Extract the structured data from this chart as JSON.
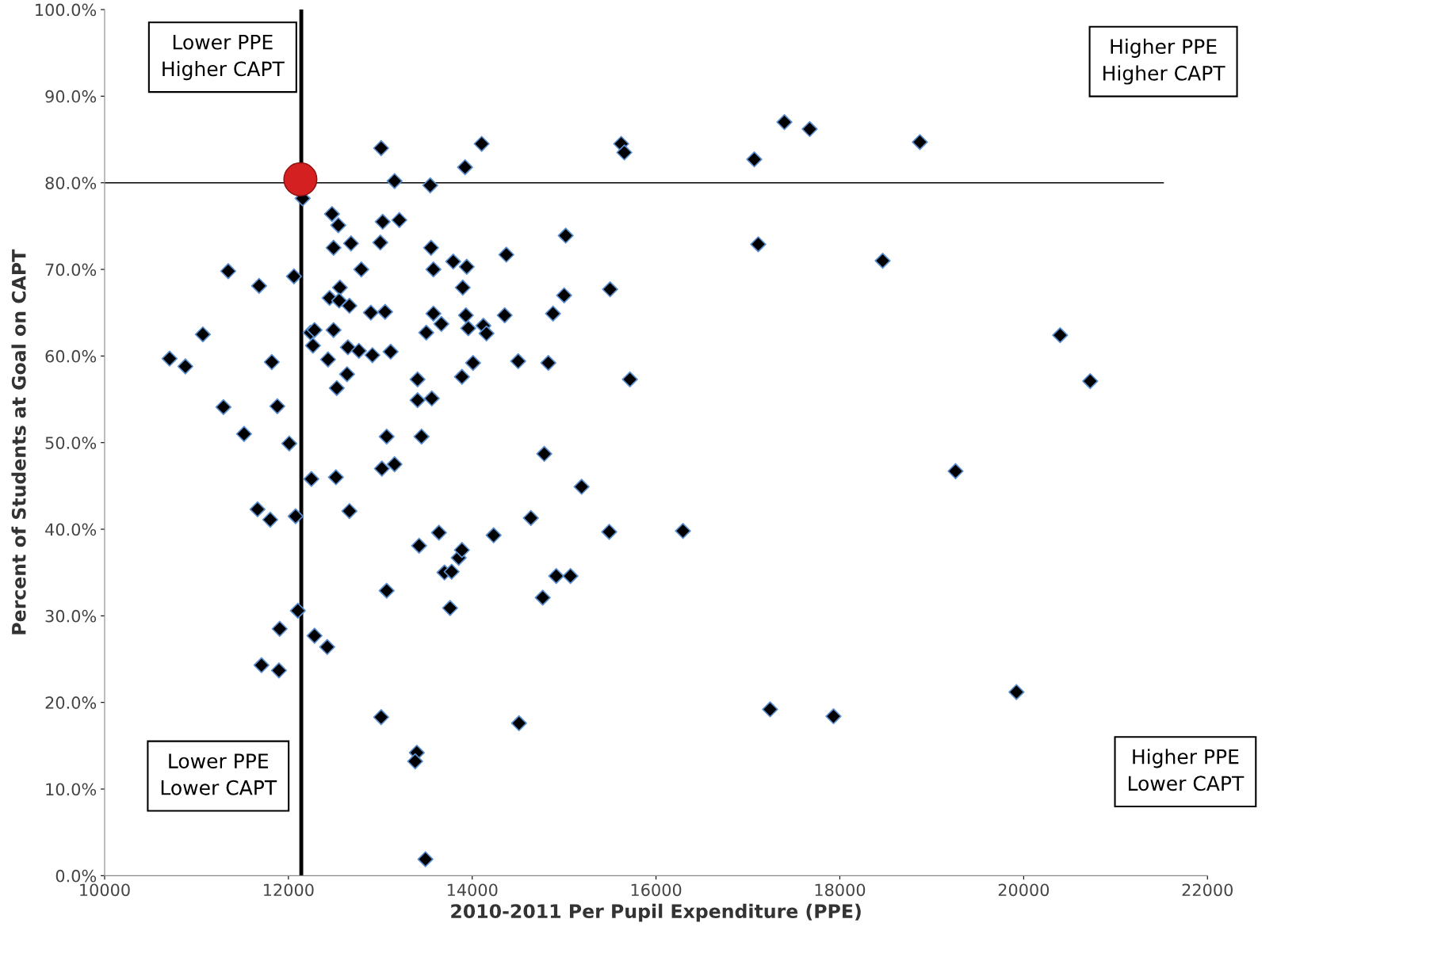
{
  "chart_data": {
    "type": "scatter",
    "xlabel": "2010-2011 Per Pupil Expenditure (PPE)",
    "ylabel": "Percent of Students at Goal on CAPT",
    "series": [
      {
        "color": "#000000",
        "marker": "diamond",
        "x": [
          10707,
          10879,
          11069,
          11345,
          11293,
          11517,
          11681,
          11664,
          11802,
          11819,
          11879,
          11707,
          11897,
          11905,
          12009,
          12060,
          12078,
          12103,
          12155,
          12241,
          12284,
          12267,
          12250,
          12284,
          12422,
          12474,
          12543,
          12491,
          12681,
          12448,
          12560,
          12552,
          12664,
          12491,
          12647,
          12767,
          12793,
          12431,
          12526,
          12638,
          12517,
          12664,
          12897,
          12914,
          13052,
          13112,
          13009,
          13155,
          13026,
          13207,
          13000,
          13069,
          13017,
          13155,
          13069,
          13009,
          13397,
          13379,
          13491,
          13405,
          13405,
          13560,
          13448,
          13422,
          13638,
          13698,
          13776,
          13759,
          13853,
          13888,
          13543,
          13552,
          13578,
          13578,
          13664,
          13500,
          13793,
          13940,
          13897,
          13931,
          13957,
          13922,
          14103,
          13888,
          14009,
          14121,
          14155,
          14233,
          14371,
          14353,
          14500,
          14509,
          14638,
          14767,
          14784,
          14828,
          14879,
          14914,
          15069,
          15000,
          15017,
          15190,
          15491,
          15500,
          15621,
          15655,
          15716,
          16293,
          17069,
          17112,
          17241,
          17397,
          17672,
          17931,
          18466,
          18871,
          19259,
          19922,
          20397,
          20724
        ],
        "values": [
          59.7,
          58.8,
          62.5,
          69.8,
          54.1,
          51.0,
          68.1,
          42.3,
          41.1,
          59.3,
          54.2,
          24.3,
          23.7,
          28.5,
          49.9,
          69.2,
          41.5,
          30.6,
          78.2,
          62.7,
          63.0,
          61.2,
          45.8,
          27.7,
          26.4,
          76.4,
          75.1,
          72.5,
          73.0,
          66.7,
          67.9,
          66.4,
          65.8,
          63.0,
          61.0,
          60.6,
          70.0,
          59.6,
          56.3,
          57.9,
          46.0,
          42.1,
          65.0,
          60.1,
          65.1,
          60.5,
          84.0,
          80.2,
          75.5,
          75.7,
          73.1,
          50.7,
          47.0,
          47.5,
          32.9,
          18.3,
          14.2,
          13.2,
          1.9,
          57.3,
          54.9,
          55.1,
          50.7,
          38.1,
          39.6,
          35.0,
          35.1,
          30.9,
          36.7,
          37.6,
          79.7,
          72.5,
          70.0,
          64.9,
          63.7,
          62.7,
          70.9,
          70.3,
          67.9,
          64.7,
          63.2,
          81.8,
          84.5,
          57.6,
          59.2,
          63.5,
          62.6,
          39.3,
          71.7,
          64.7,
          59.4,
          17.6,
          41.3,
          32.1,
          48.7,
          59.2,
          64.9,
          34.6,
          34.6,
          67.0,
          73.9,
          44.9,
          39.7,
          67.7,
          84.5,
          83.5,
          57.3,
          39.8,
          82.7,
          72.9,
          19.2,
          87.0,
          86.2,
          18.4,
          71.0,
          84.7,
          46.7,
          21.2,
          62.4,
          57.1
        ]
      },
      {
        "color": "#d42020",
        "marker": "circle",
        "x": [
          12130
        ],
        "values": [
          80.4
        ]
      }
    ],
    "ref_lines": [
      {
        "axis": "x",
        "value": 12140,
        "color": "#000000"
      },
      {
        "axis": "y",
        "value": 80,
        "color": "#000000"
      }
    ],
    "annotations": [
      "Lower PPE\nHigher CAPT",
      "Higher PPE\nHigher CAPT",
      "Lower PPE\nLower CAPT",
      "Higher PPE\nLower CAPT"
    ],
    "xlim": [
      10000,
      22000
    ],
    "xticks": [
      10000,
      12000,
      14000,
      16000,
      18000,
      20000,
      22000
    ],
    "ylim": [
      0,
      100
    ],
    "yticks": [
      {
        "value": 0,
        "label": "0.0%"
      },
      {
        "value": 10,
        "label": "10.0%"
      },
      {
        "value": 20,
        "label": "20.0%"
      },
      {
        "value": 30,
        "label": "30.0%"
      },
      {
        "value": 40,
        "label": "40.0%"
      },
      {
        "value": 50,
        "label": "50.0%"
      },
      {
        "value": 60,
        "label": "60.0%"
      },
      {
        "value": 70,
        "label": "70.0%"
      },
      {
        "value": 80,
        "label": "80.0%"
      },
      {
        "value": 90,
        "label": "90.0%"
      },
      {
        "value": 100,
        "label": "100.0%"
      }
    ],
    "grid": false,
    "legend": false
  }
}
